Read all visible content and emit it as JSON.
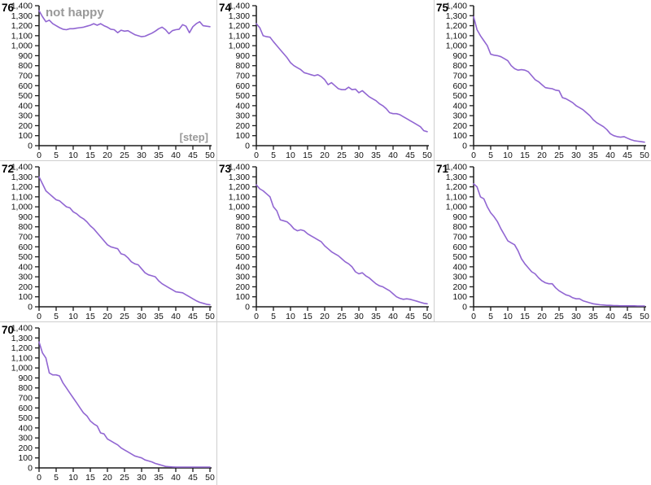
{
  "app": {
    "background_color": "#ffffff",
    "cell_border_color": "#cfcfcf"
  },
  "style": {
    "line_color": "#9166d2",
    "axis_color": "#1a1a1a",
    "tick_label_color": "#111111",
    "chart_number_color": "#000000",
    "annotation_color": "#999999"
  },
  "axes": {
    "x_range": [
      0,
      50
    ],
    "y_range": [
      0,
      1400
    ],
    "x_tick_step": 5,
    "y_tick_step": 100,
    "x_tick_labels": [
      "0",
      "5",
      "10",
      "15",
      "20",
      "25",
      "30",
      "35",
      "40",
      "45",
      "50"
    ],
    "y_tick_labels": [
      "0",
      "100",
      "200",
      "300",
      "400",
      "500",
      "600",
      "700",
      "800",
      "900",
      "1,000",
      "1,100",
      "1,200",
      "1,300",
      "1,400"
    ]
  },
  "grid_layout": {
    "columns": 3,
    "rows": 3,
    "order": [
      "76",
      "74",
      "75",
      "72",
      "73",
      "71",
      "70"
    ]
  },
  "chart_data": [
    {
      "type": "line",
      "name": "76",
      "annotation": "not happy",
      "x_label": "[step]",
      "x_start": 0,
      "x_step": 1,
      "xlim": [
        0,
        50
      ],
      "ylim": [
        0,
        1400
      ],
      "values": [
        1350,
        1290,
        1240,
        1255,
        1220,
        1200,
        1180,
        1165,
        1160,
        1170,
        1170,
        1175,
        1180,
        1185,
        1195,
        1205,
        1220,
        1205,
        1220,
        1200,
        1185,
        1165,
        1160,
        1130,
        1155,
        1145,
        1150,
        1130,
        1110,
        1100,
        1090,
        1095,
        1110,
        1125,
        1145,
        1170,
        1185,
        1160,
        1120,
        1150,
        1160,
        1165,
        1210,
        1195,
        1130,
        1190,
        1220,
        1240,
        1200,
        1195,
        1190
      ]
    },
    {
      "type": "line",
      "name": "74",
      "annotation": "",
      "x_label": "",
      "x_start": 0,
      "x_step": 1,
      "xlim": [
        0,
        50
      ],
      "ylim": [
        0,
        1400
      ],
      "values": [
        1220,
        1180,
        1100,
        1090,
        1085,
        1040,
        1000,
        960,
        920,
        880,
        830,
        800,
        780,
        760,
        730,
        720,
        710,
        700,
        710,
        690,
        660,
        610,
        630,
        600,
        570,
        560,
        560,
        585,
        560,
        565,
        530,
        550,
        520,
        490,
        470,
        450,
        420,
        400,
        370,
        330,
        320,
        320,
        310,
        290,
        270,
        250,
        230,
        210,
        190,
        150,
        140
      ]
    },
    {
      "type": "line",
      "name": "75",
      "annotation": "",
      "x_label": "",
      "x_start": 0,
      "x_step": 1,
      "xlim": [
        0,
        50
      ],
      "ylim": [
        0,
        1400
      ],
      "values": [
        1290,
        1160,
        1100,
        1050,
        1000,
        915,
        905,
        900,
        890,
        870,
        850,
        800,
        770,
        755,
        760,
        755,
        740,
        700,
        660,
        640,
        610,
        580,
        575,
        570,
        555,
        550,
        480,
        470,
        450,
        430,
        400,
        380,
        360,
        330,
        300,
        260,
        230,
        210,
        190,
        160,
        120,
        100,
        90,
        85,
        90,
        75,
        60,
        50,
        45,
        40,
        35
      ]
    },
    {
      "type": "line",
      "name": "72",
      "annotation": "",
      "x_label": "",
      "x_start": 0,
      "x_step": 1,
      "xlim": [
        0,
        50
      ],
      "ylim": [
        0,
        1400
      ],
      "values": [
        1300,
        1230,
        1160,
        1130,
        1100,
        1070,
        1060,
        1030,
        1000,
        990,
        950,
        930,
        900,
        880,
        850,
        810,
        780,
        740,
        700,
        660,
        620,
        600,
        590,
        580,
        530,
        520,
        490,
        450,
        430,
        420,
        380,
        340,
        320,
        310,
        300,
        260,
        230,
        210,
        190,
        170,
        150,
        145,
        140,
        120,
        100,
        80,
        60,
        45,
        35,
        25,
        20
      ]
    },
    {
      "type": "line",
      "name": "73",
      "annotation": "",
      "x_label": "",
      "x_start": 0,
      "x_step": 1,
      "xlim": [
        0,
        50
      ],
      "ylim": [
        0,
        1400
      ],
      "values": [
        1220,
        1180,
        1160,
        1130,
        1100,
        1000,
        960,
        870,
        860,
        850,
        820,
        780,
        760,
        770,
        760,
        730,
        710,
        690,
        670,
        650,
        610,
        580,
        550,
        530,
        510,
        480,
        450,
        430,
        400,
        350,
        330,
        340,
        310,
        290,
        260,
        230,
        210,
        200,
        180,
        160,
        130,
        100,
        85,
        75,
        80,
        75,
        65,
        55,
        45,
        35,
        30
      ]
    },
    {
      "type": "line",
      "name": "71",
      "annotation": "",
      "x_label": "",
      "x_start": 0,
      "x_step": 1,
      "xlim": [
        0,
        50
      ],
      "ylim": [
        0,
        1400
      ],
      "values": [
        1230,
        1200,
        1100,
        1080,
        1000,
        940,
        900,
        850,
        780,
        720,
        660,
        640,
        620,
        560,
        480,
        430,
        390,
        350,
        330,
        290,
        260,
        240,
        230,
        230,
        190,
        160,
        140,
        120,
        110,
        90,
        80,
        80,
        60,
        50,
        40,
        30,
        25,
        20,
        18,
        15,
        15,
        12,
        12,
        10,
        10,
        10,
        10,
        10,
        8,
        8,
        8
      ]
    },
    {
      "type": "line",
      "name": "70",
      "annotation": "",
      "x_label": "",
      "x_start": 0,
      "x_step": 1,
      "xlim": [
        0,
        50
      ],
      "ylim": [
        0,
        1400
      ],
      "values": [
        1260,
        1150,
        1100,
        950,
        930,
        930,
        920,
        850,
        800,
        750,
        700,
        650,
        600,
        550,
        520,
        470,
        440,
        420,
        350,
        340,
        290,
        270,
        250,
        230,
        200,
        180,
        160,
        140,
        120,
        110,
        100,
        80,
        70,
        60,
        45,
        35,
        25,
        15,
        12,
        10,
        8,
        8,
        8,
        8,
        8,
        8,
        8,
        8,
        8,
        8,
        8
      ]
    }
  ]
}
